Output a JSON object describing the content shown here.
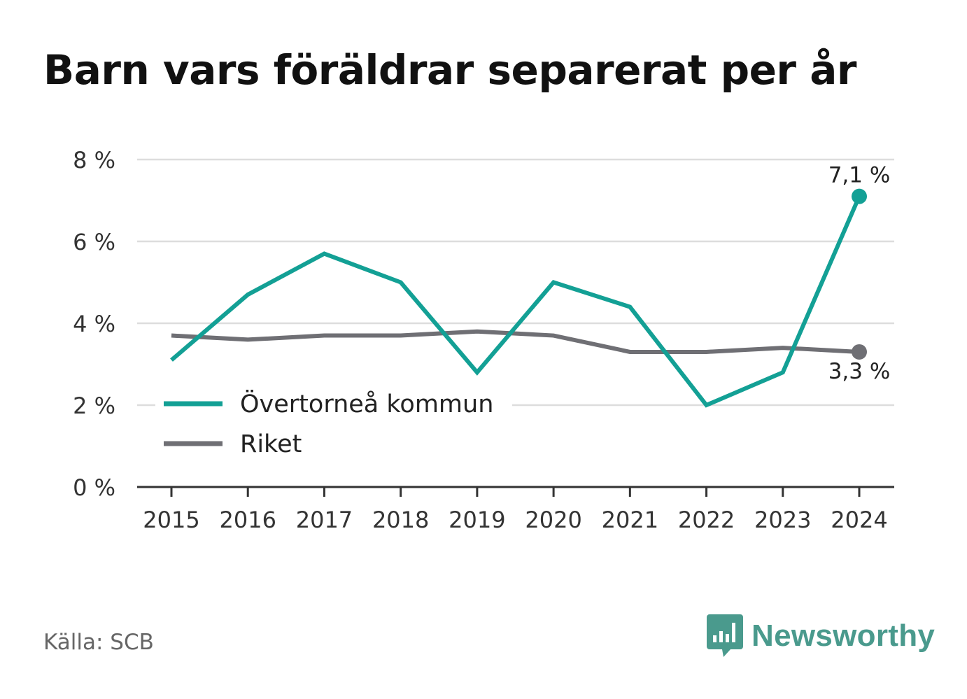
{
  "chart_data": {
    "type": "line",
    "title": "Barn vars föräldrar separerat per år",
    "x": [
      "2015",
      "2016",
      "2017",
      "2018",
      "2019",
      "2020",
      "2021",
      "2022",
      "2023",
      "2024"
    ],
    "ylim": [
      0,
      8
    ],
    "yticks": [
      0,
      2,
      4,
      6,
      8
    ],
    "ytick_labels": [
      "0 %",
      "2 %",
      "4 %",
      "6 %",
      "8 %"
    ],
    "grid": true,
    "legend_position": "center-left",
    "series": [
      {
        "name": "Övertorneå kommun",
        "color": "#13a095",
        "values": [
          3.1,
          4.7,
          5.7,
          5.0,
          2.8,
          5.0,
          4.4,
          2.0,
          2.8,
          7.1
        ],
        "end_label": "7,1 %"
      },
      {
        "name": "Riket",
        "color": "#6f6f74",
        "values": [
          3.7,
          3.6,
          3.7,
          3.7,
          3.8,
          3.7,
          3.3,
          3.3,
          3.4,
          3.3
        ],
        "end_label": "3,3 %"
      }
    ]
  },
  "footer": {
    "source": "Källa: SCB",
    "brand": "Newsworthy",
    "brand_color": "#4a9a8d",
    "brand_icon": "bar-chart-speech-bubble-icon"
  }
}
